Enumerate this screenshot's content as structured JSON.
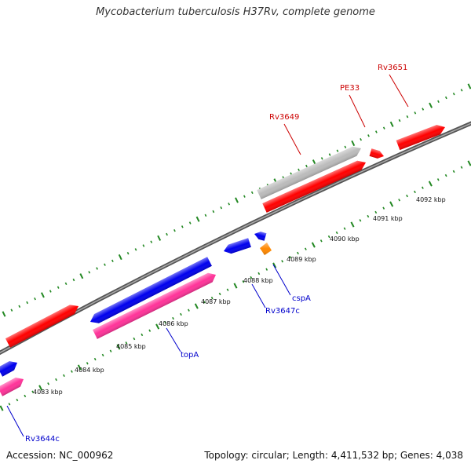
{
  "title": "Mycobacterium tuberculosis H37Rv, complete genome",
  "footer": {
    "accession": "Accession: NC_000962",
    "summary": "Topology: circular; Length: 4,411,532 bp; Genes: 4,038"
  },
  "colors": {
    "backbone": "#777777",
    "tick": "#228822",
    "forward_gene": "#ff0000",
    "reverse_gene": "#0000ee",
    "pink_gene": "#ff3399",
    "grey_gene": "#bbbbbb",
    "orange_gene": "#ff8800",
    "forward_label": "#cc0000",
    "reverse_label": "#0000cc"
  },
  "scale": {
    "tick_labels": [
      "4083 kbp",
      "4084 kbp",
      "4085 kbp",
      "4086 kbp",
      "4087 kbp",
      "4088 kbp",
      "4089 kbp",
      "4090 kbp",
      "4091 kbp",
      "4092 kbp"
    ]
  },
  "gene_labels": {
    "forward": [
      "Rv3649",
      "PE33",
      "Rv3651"
    ],
    "reverse": [
      "Rv3644c",
      "topA",
      "Rv3647c",
      "cspA"
    ]
  },
  "features": [
    {
      "id": "fwd-a",
      "strand": "forward",
      "color": "forward_gene"
    },
    {
      "id": "fwd-rv3649",
      "strand": "forward",
      "color": "forward_gene"
    },
    {
      "id": "fwd-pe33",
      "strand": "forward",
      "color": "forward_gene"
    },
    {
      "id": "fwd-rv3651",
      "strand": "forward",
      "color": "forward_gene"
    },
    {
      "id": "fwd-grey",
      "strand": "forward",
      "color": "grey_gene"
    },
    {
      "id": "rev-a",
      "strand": "reverse",
      "color": "reverse_gene"
    },
    {
      "id": "rev-topA",
      "strand": "reverse",
      "color": "reverse_gene"
    },
    {
      "id": "rev-rv3647c",
      "strand": "reverse",
      "color": "reverse_gene"
    },
    {
      "id": "rev-small",
      "strand": "reverse",
      "color": "reverse_gene"
    },
    {
      "id": "pink-a",
      "strand": "reverse",
      "color": "pink_gene"
    },
    {
      "id": "pink-topA",
      "strand": "reverse",
      "color": "pink_gene"
    },
    {
      "id": "orange-cspA",
      "strand": "reverse",
      "color": "orange_gene"
    }
  ]
}
